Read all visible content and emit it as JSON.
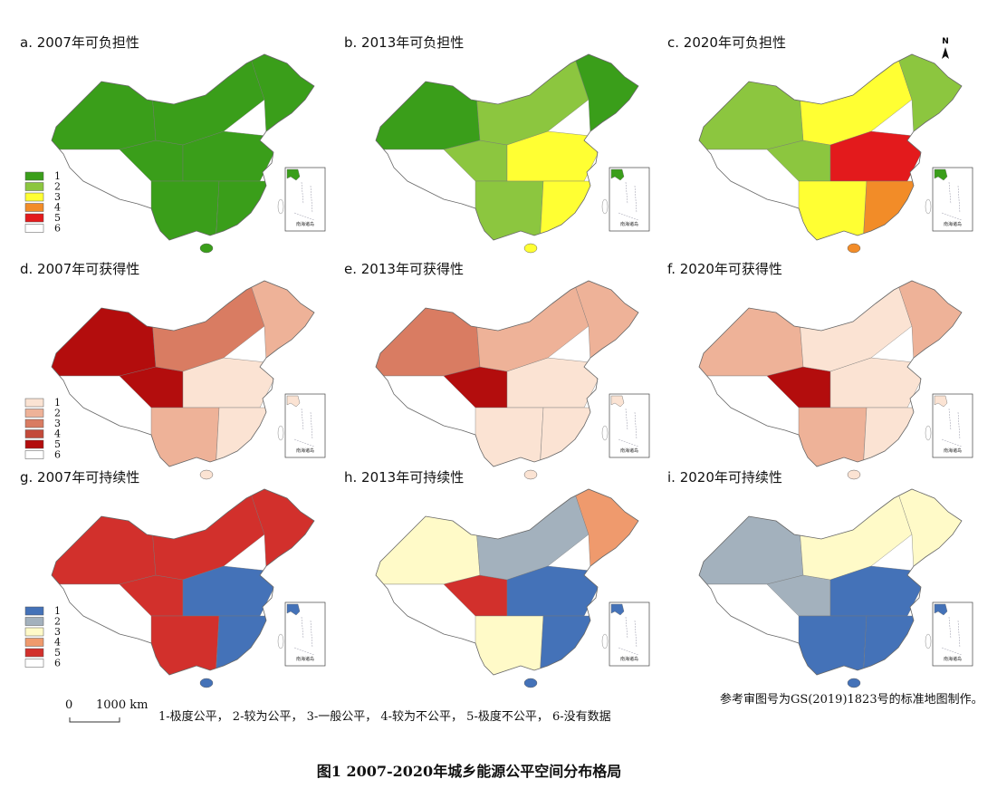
{
  "panels": [
    {
      "title": "a. 2007年可负担性",
      "legend": {
        "labels": [
          "1",
          "2",
          "3",
          "4",
          "5",
          "6"
        ],
        "colors": [
          "#3a9e1a",
          "#8cc63f",
          "#ffff33",
          "#f28c28",
          "#e31a1c",
          "#ffffff"
        ]
      }
    },
    {
      "title": "b. 2013年可负担性"
    },
    {
      "title": "c. 2020年可负担性",
      "north": "N"
    },
    {
      "title": "d. 2007年可获得性",
      "legend": {
        "labels": [
          "1",
          "2",
          "3",
          "4",
          "5",
          "6"
        ],
        "colors": [
          "#fbe3d3",
          "#eeb298",
          "#d97c62",
          "#c34a3a",
          "#b30d0d",
          "#ffffff"
        ]
      }
    },
    {
      "title": "e. 2013年可获得性"
    },
    {
      "title": "f. 2020年可获得性"
    },
    {
      "title": "g. 2007年可持续性",
      "legend": {
        "labels": [
          "1",
          "2",
          "3",
          "4",
          "5",
          "6"
        ],
        "colors": [
          "#4472b8",
          "#a3b1bd",
          "#fffac8",
          "#ef9a6d",
          "#d2302c",
          "#ffffff"
        ]
      }
    },
    {
      "title": "h. 2013年可持续性"
    },
    {
      "title": "i. 2020年可持续性"
    }
  ],
  "inset_label": "南海诸岛",
  "scale_bar": {
    "zero": "0",
    "distance": "1000 km"
  },
  "key": "1-极度公平， 2-较为公平， 3-一般公平， 4-较为不公平， 5-极度不公平， 6-没有数据",
  "note": "参考审图号为GS(2019)1823号的标准地图制作。",
  "caption": "图1 2007-2020年城乡能源公平空间分布格局"
}
